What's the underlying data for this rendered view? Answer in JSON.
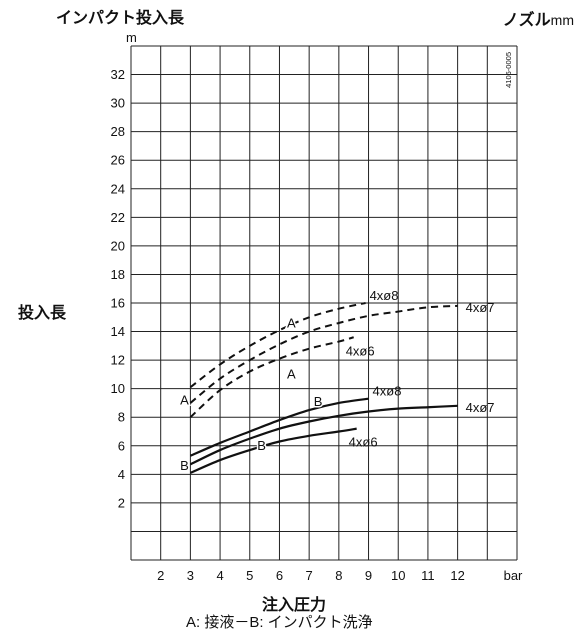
{
  "header": {
    "title_left": "インパクト投入長",
    "title_right": "ノズル",
    "title_right_unit": "mm"
  },
  "chart_data": {
    "type": "line",
    "ylabel": "投入長",
    "y_unit": "m",
    "xlabel": "注入圧力",
    "x_unit": "bar",
    "x_ticks": [
      2,
      3,
      4,
      5,
      6,
      7,
      8,
      9,
      10,
      11,
      12
    ],
    "y_ticks": [
      2,
      4,
      6,
      8,
      10,
      12,
      14,
      16,
      18,
      20,
      22,
      24,
      26,
      28,
      30,
      32
    ],
    "xlim": [
      1,
      14
    ],
    "ylim": [
      -2,
      34
    ],
    "grid": true,
    "figure_code": "4106-0005",
    "footnote": "A: 接液－B: インパクト洗浄",
    "series": [
      {
        "name": "4xø8",
        "group": "A",
        "style": "dashed",
        "x": [
          3,
          4,
          5,
          6,
          7,
          8,
          8.9
        ],
        "y": [
          10.1,
          11.7,
          13.0,
          14.1,
          15.0,
          15.6,
          16.0
        ]
      },
      {
        "name": "4xø7",
        "group": "A",
        "style": "dashed",
        "x": [
          3,
          4,
          5,
          6,
          7,
          8,
          9,
          10,
          11,
          12
        ],
        "y": [
          9.0,
          10.7,
          12.0,
          13.1,
          14.0,
          14.6,
          15.1,
          15.4,
          15.7,
          15.8
        ]
      },
      {
        "name": "4xø6",
        "group": "A",
        "style": "dashed",
        "x": [
          3,
          4,
          5,
          6,
          7,
          8,
          8.5
        ],
        "y": [
          8.0,
          9.9,
          11.2,
          12.1,
          12.8,
          13.3,
          13.6
        ]
      },
      {
        "name": "4xø8",
        "group": "B",
        "style": "solid",
        "x": [
          3,
          4,
          5,
          6,
          7,
          8,
          9
        ],
        "y": [
          5.3,
          6.2,
          7.0,
          7.8,
          8.5,
          9.0,
          9.3
        ]
      },
      {
        "name": "4xø7",
        "group": "B",
        "style": "solid",
        "x": [
          3,
          4,
          5,
          6,
          7,
          8,
          9,
          10,
          11,
          12
        ],
        "y": [
          4.7,
          5.7,
          6.5,
          7.2,
          7.7,
          8.1,
          8.4,
          8.6,
          8.7,
          8.8
        ]
      },
      {
        "name": "4xø6",
        "group": "B",
        "style": "solid",
        "x": [
          3,
          4,
          5,
          6,
          7,
          8,
          8.6
        ],
        "y": [
          4.1,
          5.0,
          5.7,
          6.3,
          6.7,
          7.0,
          7.2
        ]
      }
    ],
    "annotations": [
      {
        "text": "A",
        "x": 6.4,
        "y": 14.3
      },
      {
        "text": "A",
        "x": 6.4,
        "y": 10.7
      },
      {
        "text": "A",
        "x": 2.8,
        "y": 8.9
      },
      {
        "text": "B",
        "x": 7.3,
        "y": 8.8
      },
      {
        "text": "B",
        "x": 5.4,
        "y": 5.7
      },
      {
        "text": "B",
        "x": 2.8,
        "y": 4.3
      }
    ]
  }
}
